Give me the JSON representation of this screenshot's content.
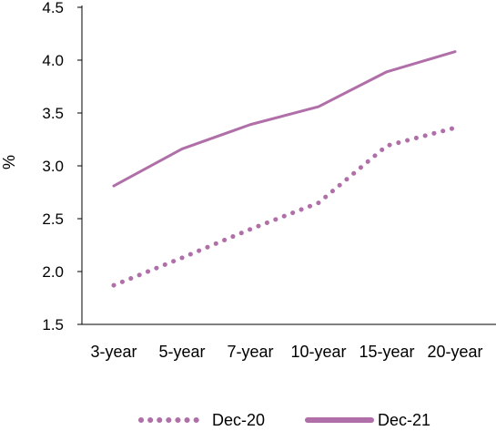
{
  "chart_data": {
    "type": "line",
    "categories": [
      "3-year",
      "5-year",
      "7-year",
      "10-year",
      "15-year",
      "20-year"
    ],
    "series": [
      {
        "name": "Dec-20",
        "values": [
          1.87,
          2.13,
          2.4,
          2.65,
          3.19,
          3.36
        ],
        "style": "dotted",
        "color": "#b06fa8"
      },
      {
        "name": "Dec-21",
        "values": [
          2.81,
          3.16,
          3.39,
          3.56,
          3.89,
          4.08
        ],
        "style": "solid",
        "color": "#b06fa8"
      }
    ],
    "ylabel": "%",
    "ylim": [
      1.5,
      4.5
    ],
    "yticks": [
      "1.5",
      "2.0",
      "2.5",
      "3.0",
      "3.5",
      "4.0",
      "4.5"
    ],
    "grid": false,
    "legend": "bottom"
  }
}
